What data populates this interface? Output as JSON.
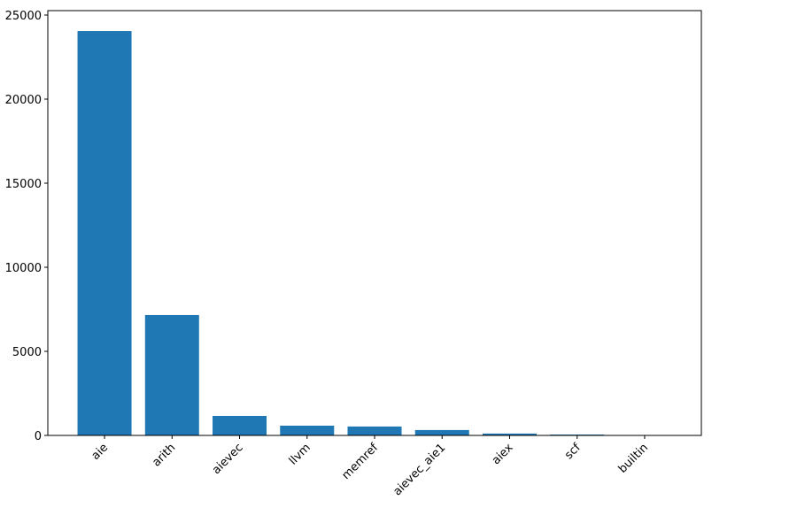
{
  "chart_data": {
    "type": "bar",
    "categories": [
      "aie",
      "arith",
      "aievec",
      "llvm",
      "memref",
      "aievec_aie1",
      "aiex",
      "scf",
      "builtin"
    ],
    "values": [
      24050,
      7160,
      1160,
      580,
      530,
      320,
      110,
      50,
      5
    ],
    "color": "#1f77b4",
    "ylim": [
      0,
      25263
    ],
    "yticks": [
      0,
      5000,
      10000,
      15000,
      20000,
      25000
    ],
    "grid": false
  }
}
